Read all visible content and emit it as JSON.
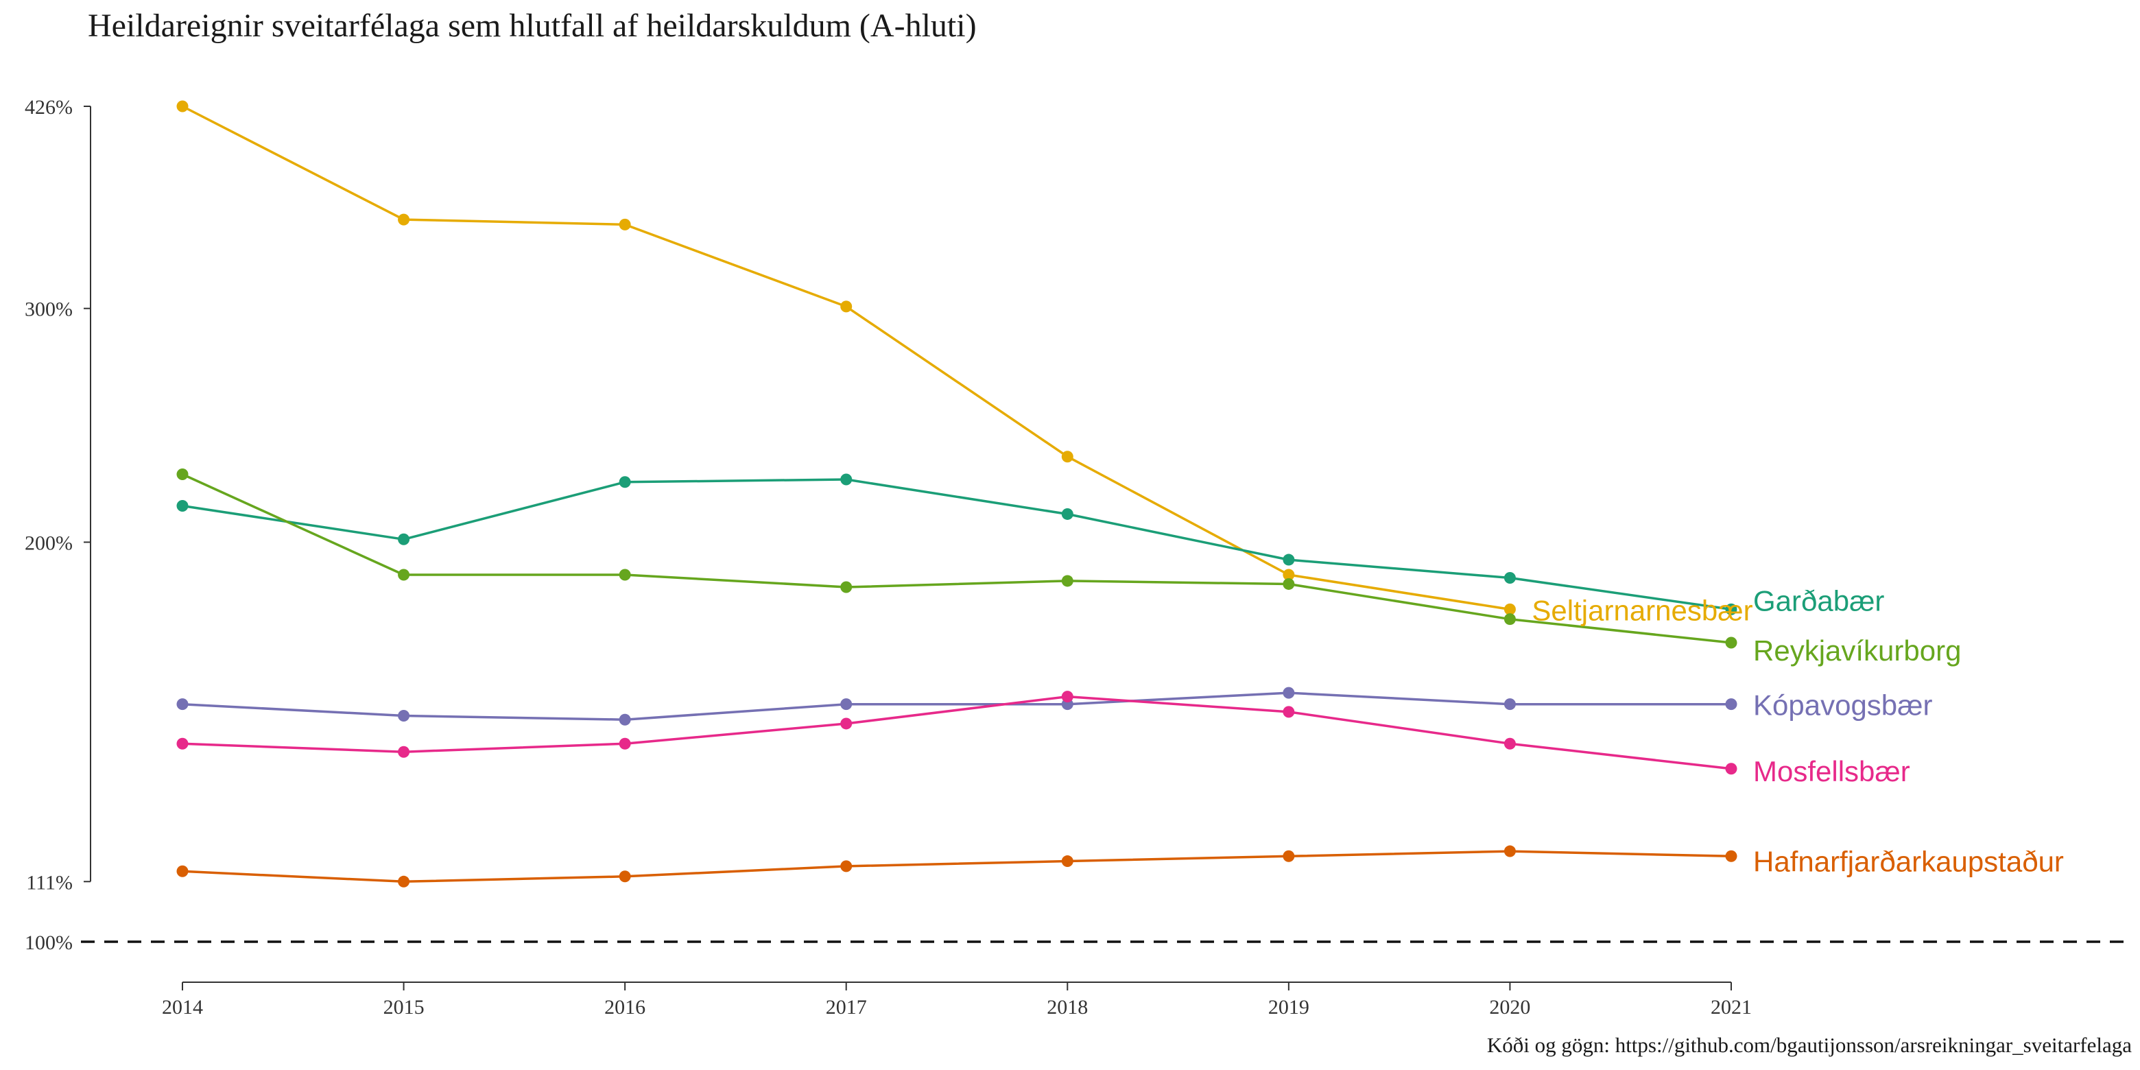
{
  "chart_data": {
    "type": "line",
    "title": "Heildareignir sveitarfélaga sem hlutfall af heildarskuldum (A-hluti)",
    "caption": "Kóði og gögn: https://github.com/bgautijonsson/arsreikningar_sveitarfelaga",
    "xlabel": "",
    "ylabel": "",
    "x": [
      2014,
      2015,
      2016,
      2017,
      2018,
      2019,
      2020,
      2021
    ],
    "x_tick_labels": [
      "2014",
      "2015",
      "2016",
      "2017",
      "2018",
      "2019",
      "2020",
      "2021"
    ],
    "y_scale": "log",
    "ylim": [
      100,
      426
    ],
    "y_ticks": [
      100,
      111,
      200,
      300,
      426
    ],
    "y_tick_labels": [
      "100%",
      "111%",
      "200%",
      "300%",
      "426%"
    ],
    "reference_line": {
      "y": 100,
      "style": "dashed"
    },
    "grid": false,
    "legend": "direct labels at line ends",
    "series": [
      {
        "name": "Seltjarnarnesbær",
        "color": "#E6AB02",
        "label_at": 2020,
        "values": [
          426,
          350,
          347,
          301,
          232,
          189,
          178,
          null
        ]
      },
      {
        "name": "Garðabær",
        "color": "#1B9E77",
        "label_at": 2021,
        "values": [
          213,
          201,
          222,
          223,
          210,
          194,
          188,
          178
        ]
      },
      {
        "name": "Reykjavíkurborg",
        "color": "#66A61E",
        "label_at": 2021,
        "values": [
          225,
          189,
          189,
          185,
          187,
          186,
          175,
          168
        ]
      },
      {
        "name": "Kópavogsbær",
        "color": "#7570B3",
        "label_at": 2021,
        "values": [
          151,
          148,
          147,
          151,
          151,
          154,
          151,
          151
        ]
      },
      {
        "name": "Mosfellsbær",
        "color": "#E7298A",
        "label_at": 2021,
        "values": [
          141,
          139,
          141,
          146,
          153,
          149,
          141,
          135
        ]
      },
      {
        "name": "Hafnarfjarðarkaupstaður",
        "color": "#D95F02",
        "label_at": 2021,
        "values": [
          113,
          111,
          112,
          114,
          115,
          116,
          117,
          116
        ]
      }
    ]
  }
}
